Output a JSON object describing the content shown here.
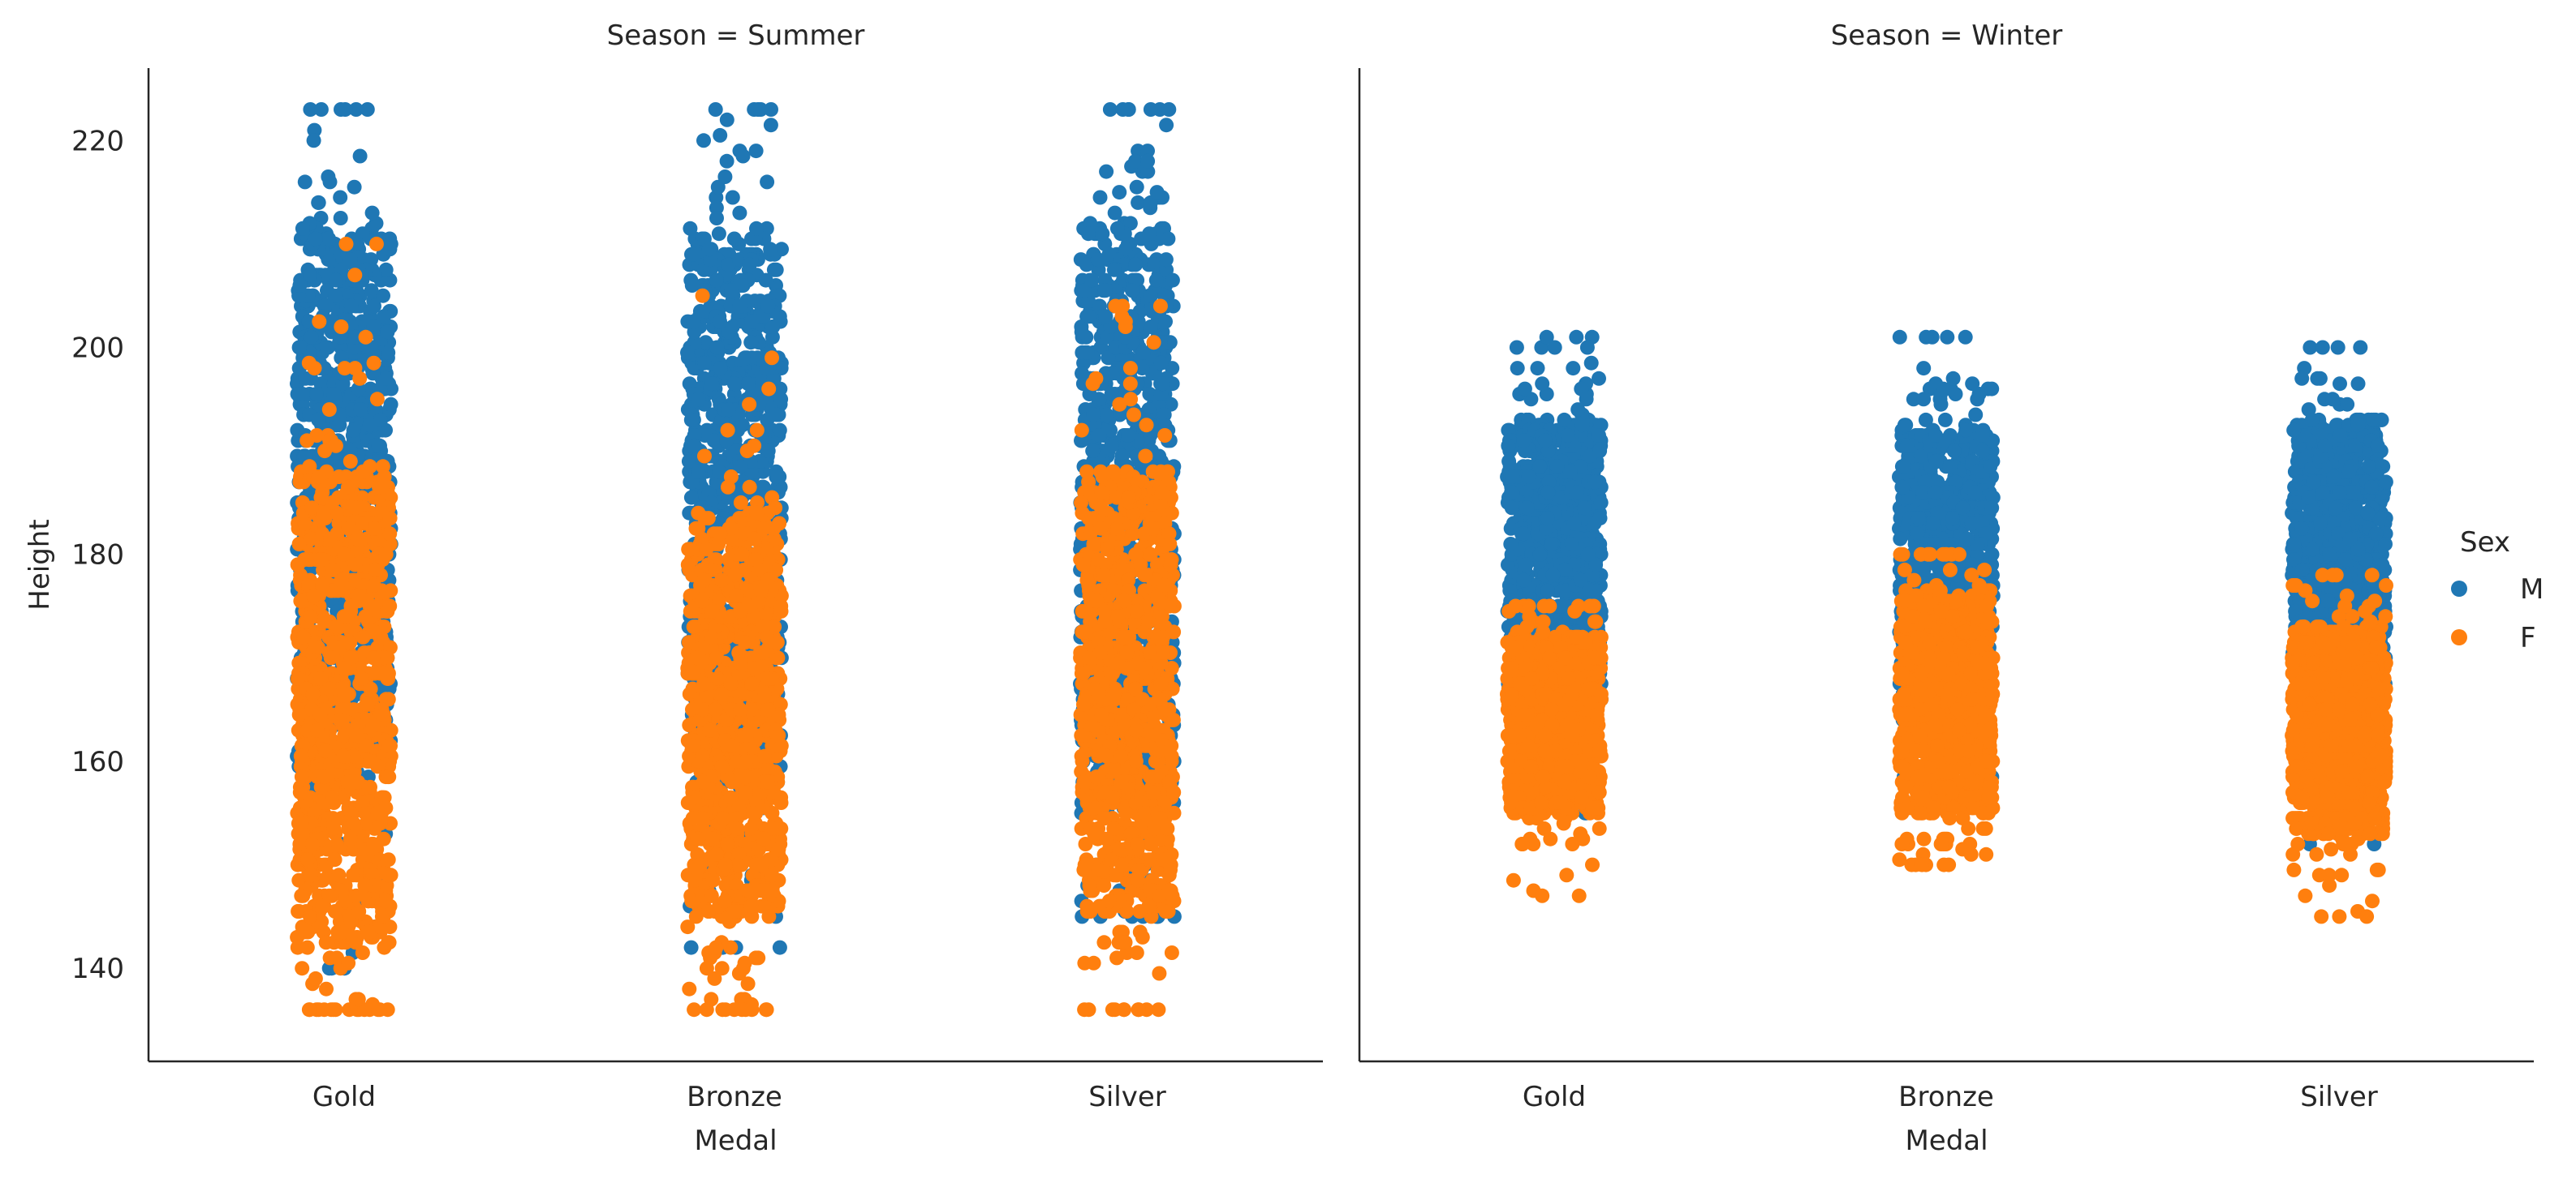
{
  "chart_data": {
    "type": "scatter",
    "kind": "strip",
    "facet_variable": "Season",
    "facets": [
      {
        "title": "Season = Summer",
        "categories": [
          "Gold",
          "Bronze",
          "Silver"
        ],
        "series": [
          {
            "name": "M",
            "color": "#1f77b4",
            "groups": [
              {
                "category": "Gold",
                "range": [
                  140,
                  223
                ],
                "core": [
                  160,
                  211
                ],
                "extremes": [
                  220,
                  223,
                  216,
                  140,
                  144
                ]
              },
              {
                "category": "Bronze",
                "range": [
                  142,
                  223
                ],
                "core": [
                  158,
                  211
                ],
                "extremes": [
                  223,
                  223,
                  222,
                  220,
                  218,
                  142
                ]
              },
              {
                "category": "Silver",
                "range": [
                  145,
                  223
                ],
                "core": [
                  155,
                  212
                ],
                "extremes": [
                  223,
                  218,
                  218,
                  217,
                  215,
                  145
                ]
              }
            ]
          },
          {
            "name": "F",
            "color": "#ff7f0e",
            "groups": [
              {
                "category": "Gold",
                "range": [
                  136,
                  210
                ],
                "core": [
                  142,
                  188
                ],
                "extremes": [
                  136,
                  136,
                  136,
                  137,
                  210,
                  201,
                  198
                ]
              },
              {
                "category": "Bronze",
                "range": [
                  136,
                  205
                ],
                "core": [
                  145,
                  183
                ],
                "extremes": [
                  136,
                  137,
                  140,
                  205,
                  196
                ]
              },
              {
                "category": "Silver",
                "range": [
                  136,
                  204
                ],
                "core": [
                  145,
                  188
                ],
                "extremes": [
                  136,
                  141,
                  204,
                  197
                ]
              }
            ]
          }
        ]
      },
      {
        "title": "Season = Winter",
        "categories": [
          "Gold",
          "Bronze",
          "Silver"
        ],
        "series": [
          {
            "name": "M",
            "color": "#1f77b4",
            "groups": [
              {
                "category": "Gold",
                "range": [
                  155,
                  201
                ],
                "core": [
                  165,
                  193
                ],
                "extremes": [
                  201,
                  200,
                  198,
                  155
                ]
              },
              {
                "category": "Bronze",
                "range": [
                  157,
                  201
                ],
                "core": [
                  163,
                  192
                ],
                "extremes": [
                  201,
                  198,
                  197,
                  196,
                  157
                ]
              },
              {
                "category": "Silver",
                "range": [
                  152,
                  200
                ],
                "core": [
                  165,
                  193
                ],
                "extremes": [
                  200,
                  197,
                  197,
                  152
                ]
              }
            ]
          },
          {
            "name": "F",
            "color": "#ff7f0e",
            "groups": [
              {
                "category": "Gold",
                "range": [
                  147,
                  175
                ],
                "core": [
                  155,
                  172
                ],
                "extremes": [
                  147,
                  152,
                  152,
                  153
                ]
              },
              {
                "category": "Bronze",
                "range": [
                  150,
                  180
                ],
                "core": [
                  155,
                  176
                ],
                "extremes": [
                  150,
                  150,
                  151,
                  152
                ]
              },
              {
                "category": "Silver",
                "range": [
                  145,
                  178
                ],
                "core": [
                  153,
                  173
                ],
                "extremes": [
                  145,
                  148,
                  149,
                  152
                ]
              }
            ]
          }
        ]
      }
    ],
    "xlabel": "Medal",
    "ylabel": "Height",
    "ylim": [
      131,
      227
    ],
    "yticks": [
      140,
      160,
      180,
      200,
      220
    ],
    "grid": false,
    "legend": {
      "title": "Sex",
      "placement": "right",
      "entries": [
        {
          "label": "M",
          "color": "#1f77b4"
        },
        {
          "label": "F",
          "color": "#ff7f0e"
        }
      ]
    }
  }
}
